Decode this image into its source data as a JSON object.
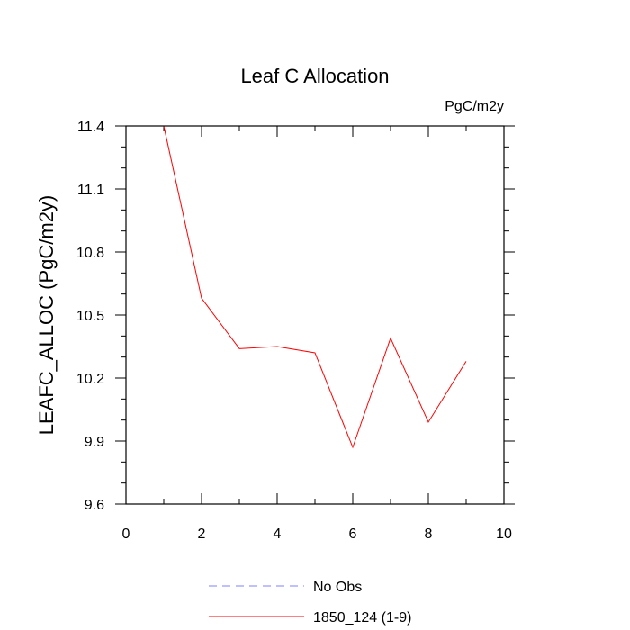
{
  "chart_data": {
    "type": "line",
    "title": "Leaf C Allocation",
    "units_label": "PgC/m2y",
    "xlabel": "",
    "ylabel": "LEAFC_ALLOC  (PgC/m2y)",
    "xlim": [
      0,
      10
    ],
    "ylim": [
      9.6,
      11.4
    ],
    "x_ticks": [
      0,
      2,
      4,
      6,
      8,
      10
    ],
    "x_tick_labels": [
      "0",
      "2",
      "4",
      "6",
      "8",
      "10"
    ],
    "x_minor_step": 1,
    "y_ticks": [
      9.6,
      9.9,
      10.2,
      10.5,
      10.8,
      11.1,
      11.4
    ],
    "y_tick_labels": [
      "9.6",
      "9.9",
      "10.2",
      "10.5",
      "10.8",
      "11.1",
      "11.4"
    ],
    "y_minor_step": 0.1,
    "grid": false,
    "series": [
      {
        "name": "1850_124 (1-9)",
        "color": "#ff0000",
        "style": "solid",
        "x": [
          1,
          2,
          3,
          4,
          5,
          6,
          7,
          8,
          9
        ],
        "y": [
          11.4,
          10.58,
          10.34,
          10.35,
          10.32,
          9.87,
          10.39,
          9.99,
          10.28
        ]
      }
    ],
    "legend": [
      {
        "label": "No Obs",
        "color": "#8080ff",
        "style": "dashed"
      },
      {
        "label": "1850_124 (1-9)",
        "color": "#ff0000",
        "style": "solid"
      }
    ],
    "legend_position": "bottom-center"
  }
}
